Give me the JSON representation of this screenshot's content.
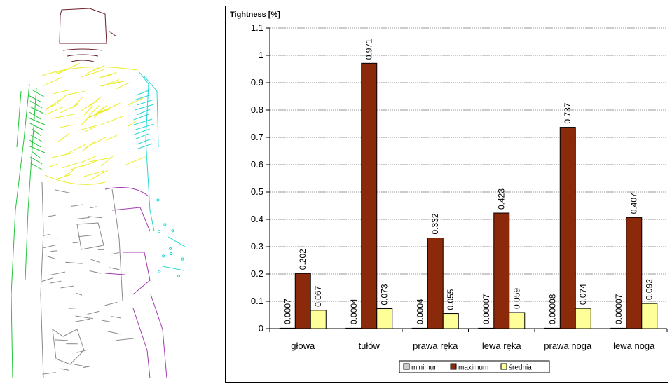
{
  "figure": {
    "colors": {
      "head": "#6b1f2a",
      "torso": "#ecec2a",
      "right_arm": "#22c43a",
      "left_arm": "#25d6d6",
      "legs": "#a33ab0",
      "body_outline": "#8a8a8a"
    }
  },
  "chart_data": {
    "type": "bar",
    "title": "Tightness [%]",
    "categories": [
      "głowa",
      "tułów",
      "prawa ręka",
      "lewa ręka",
      "prawa noga",
      "lewa noga"
    ],
    "series": [
      {
        "name": "minimum",
        "color": "#cccccc",
        "values": [
          0.0007,
          0.0004,
          0.0004,
          7e-05,
          8e-05,
          7e-05
        ],
        "labels": [
          "0.0007",
          "0.0004",
          "0.0004",
          "0.00007",
          "0.00008",
          "0.00007"
        ]
      },
      {
        "name": "maximum",
        "color": "#8b2a0a",
        "values": [
          0.202,
          0.971,
          0.332,
          0.423,
          0.737,
          0.407
        ],
        "labels": [
          "0.202",
          "0.971",
          "0.332",
          "0.423",
          "0.737",
          "0.407"
        ]
      },
      {
        "name": "średnia",
        "color": "#ffff99",
        "values": [
          0.067,
          0.073,
          0.055,
          0.059,
          0.074,
          0.092
        ],
        "labels": [
          "0.067",
          "0.073",
          "0.055",
          "0.059",
          "0.074",
          "0.092"
        ]
      }
    ],
    "ylim": [
      0,
      1.1
    ],
    "yticks": [
      "0",
      "0.1",
      "0.2",
      "0.3",
      "0.4",
      "0.5",
      "0.6",
      "0.7",
      "0.8",
      "0.9",
      "1",
      "1.1"
    ],
    "grid": true,
    "legend": "bottom"
  }
}
